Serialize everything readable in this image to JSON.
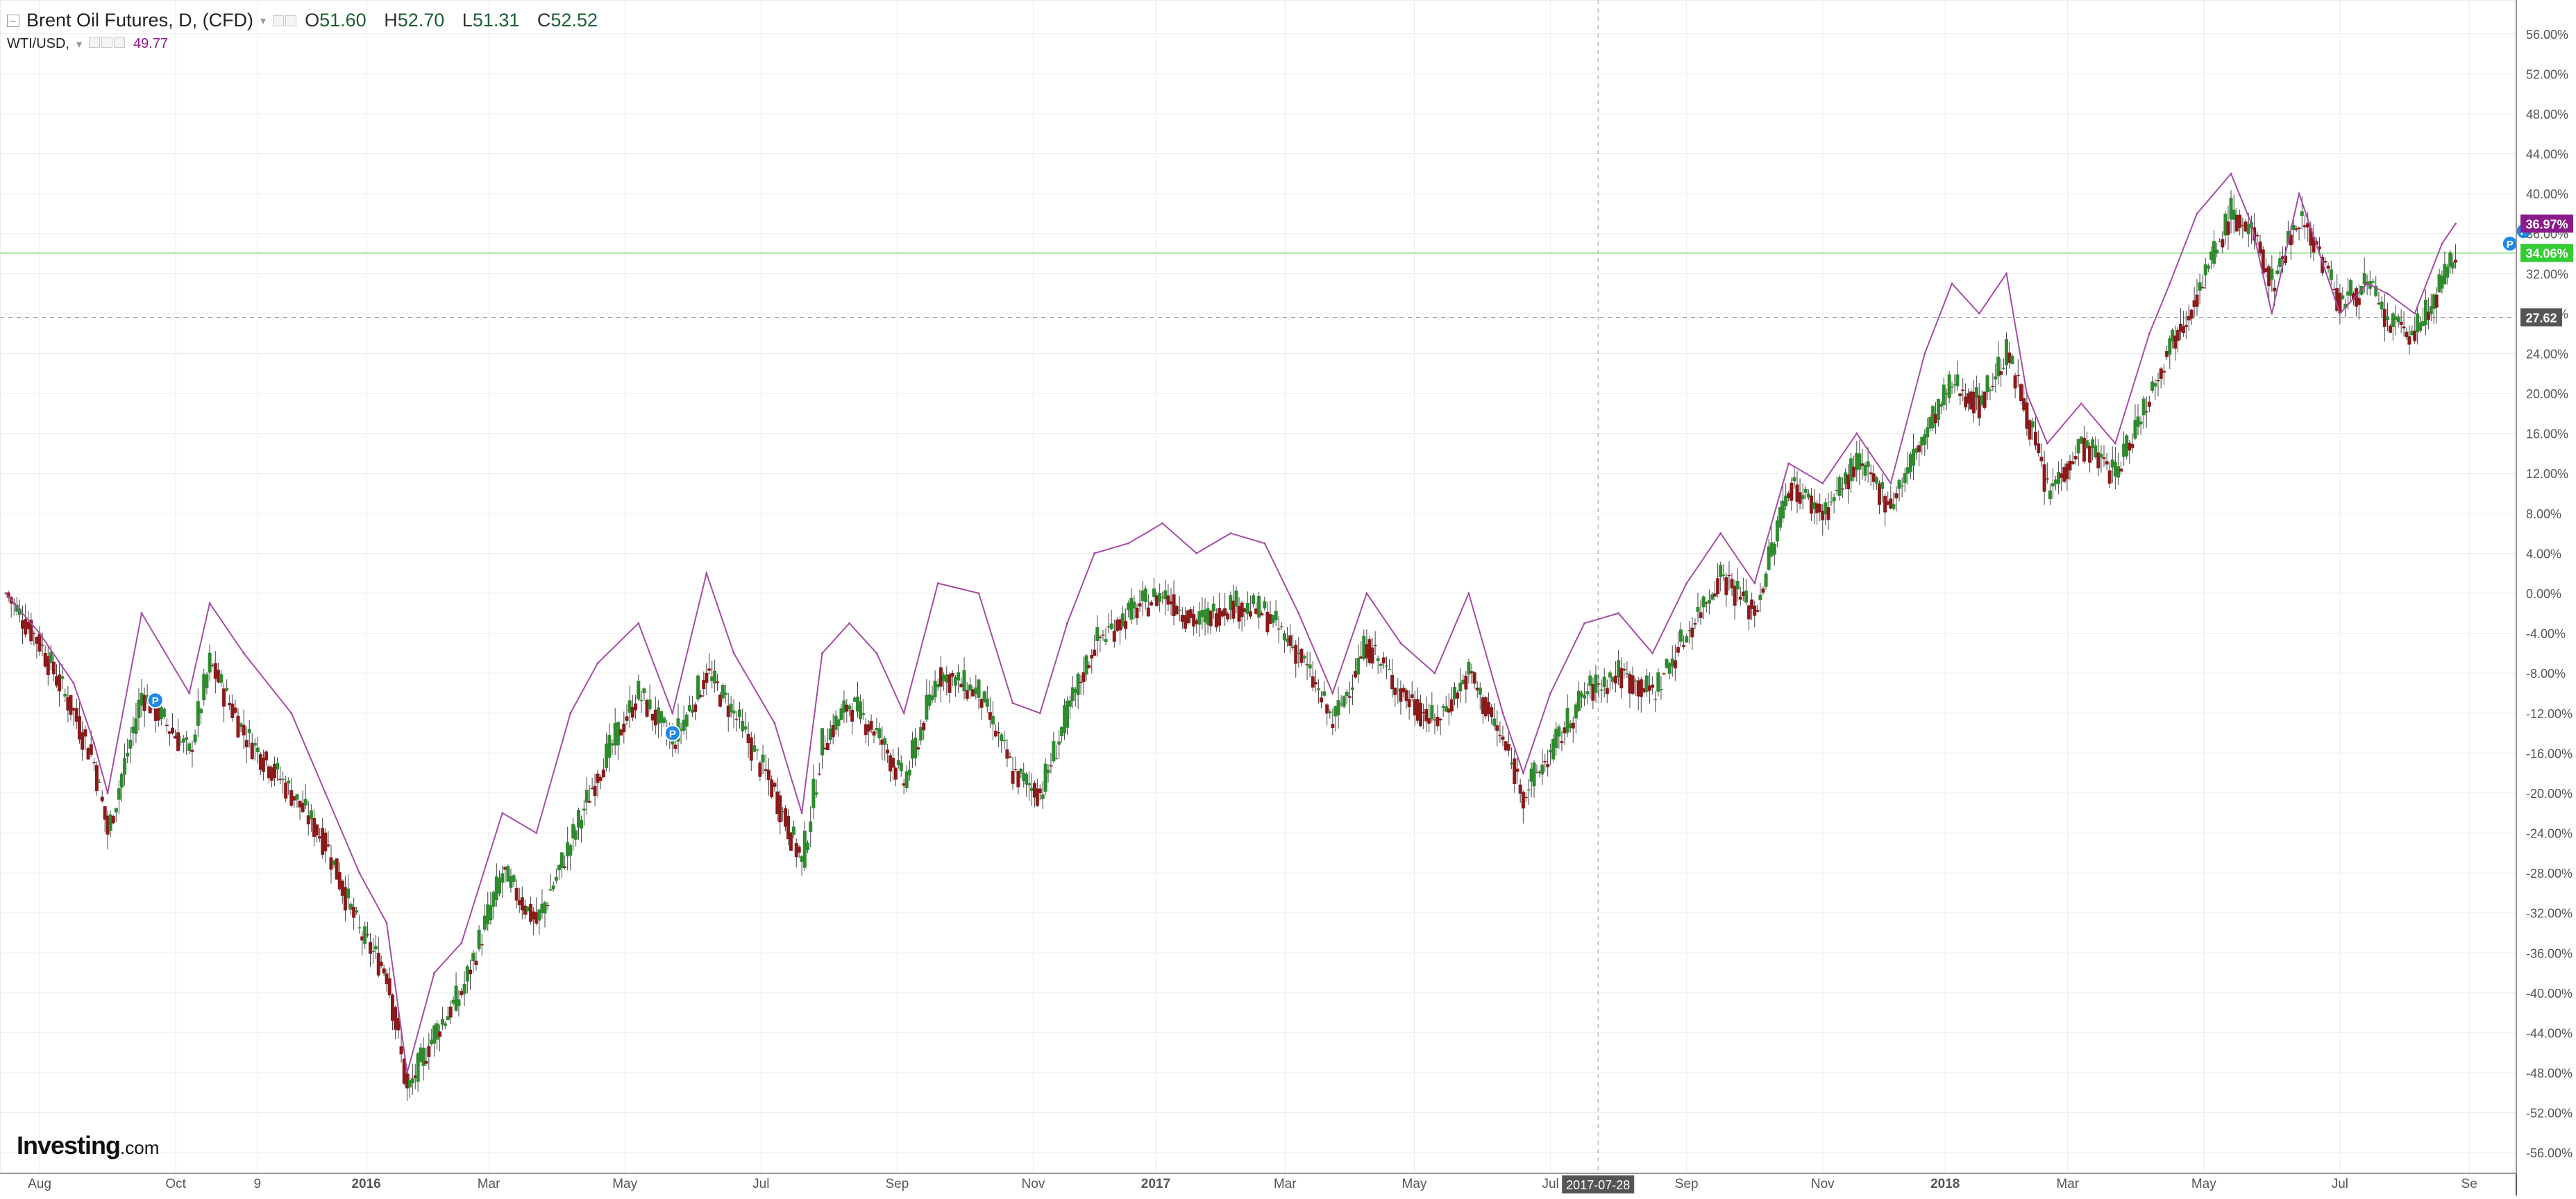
{
  "legend": {
    "main_title": "Brent Oil Futures, D, (CFD)",
    "open_key": "O",
    "open": "51.60",
    "high_key": "H",
    "high": "52.70",
    "low_key": "L",
    "low": "51.31",
    "close_key": "C",
    "close": "52.52",
    "compare_title": "WTI/USD,",
    "compare_value": "49.77"
  },
  "logo": {
    "name": "Investing",
    "suffix": ".com"
  },
  "colors": {
    "up": "#2e8b2e",
    "down": "#8b1a1a",
    "compare_line": "#a64ca6",
    "compare_badge": "#8b1a8b",
    "last_price_badge": "#33cc33",
    "crosshair_badge": "#555555",
    "grid": "#ececec"
  },
  "icons": [
    "collapse-icon",
    "settings-icon",
    "close-icon",
    "dividend-marker-icon"
  ],
  "chart_data": {
    "type": "line",
    "y_scale": "percent",
    "ylim": [
      -58,
      58
    ],
    "y_ticks": [
      "56.00%",
      "52.00%",
      "48.00%",
      "44.00%",
      "40.00%",
      "36.00%",
      "32.00%",
      "28.00%",
      "24.00%",
      "20.00%",
      "16.00%",
      "12.00%",
      "8.00%",
      "4.00%",
      "0.00%",
      "-4.00%",
      "-8.00%",
      "-12.00%",
      "-16.00%",
      "-20.00%",
      "-24.00%",
      "-28.00%",
      "-32.00%",
      "-36.00%",
      "-40.00%",
      "-44.00%",
      "-48.00%",
      "-52.00%",
      "-56.00%"
    ],
    "x_ticks": [
      "Aug",
      "Oct",
      "9",
      "2016",
      "Mar",
      "May",
      "Jul",
      "Sep",
      "Nov",
      "2017",
      "Mar",
      "May",
      "Jul",
      "Sep",
      "Nov",
      "2018",
      "Mar",
      "May",
      "Jul",
      "Se"
    ],
    "x_tick_t": [
      0.5,
      2.5,
      3.7,
      5.3,
      7.1,
      9.1,
      11.1,
      13.1,
      15.1,
      16.9,
      18.8,
      20.7,
      22.7,
      24.7,
      26.7,
      28.5,
      30.3,
      32.3,
      34.3,
      36.2
    ],
    "x_range": [
      0,
      36.8
    ],
    "series": [
      {
        "name": "Brent Oil Futures",
        "kind": "candlestick",
        "t": [
          0,
          0.5,
          1,
          1.3,
          1.5,
          2,
          2.7,
          3,
          3.5,
          4.2,
          4.7,
          5.2,
          5.6,
          5.9,
          6.3,
          6.7,
          7.3,
          7.8,
          8.3,
          8.7,
          9.3,
          9.8,
          10.3,
          10.7,
          11.3,
          11.7,
          12.0,
          12.4,
          12.8,
          13.2,
          13.7,
          14.3,
          14.8,
          15.2,
          15.6,
          16.0,
          16.5,
          17.0,
          17.5,
          18.0,
          18.5,
          19.0,
          19.5,
          20.0,
          20.5,
          21.0,
          21.5,
          22.0,
          22.3,
          22.7,
          23.2,
          23.7,
          24.2,
          24.7,
          25.2,
          25.7,
          26.2,
          26.7,
          27.2,
          27.7,
          28.2,
          28.6,
          29.0,
          29.4,
          29.7,
          30.0,
          30.5,
          31.0,
          31.5,
          31.8,
          32.2,
          32.7,
          33.0,
          33.3,
          33.7,
          34.0,
          34.3,
          34.7,
          35.0,
          35.4,
          35.8,
          36.0
        ],
        "close": [
          0,
          -5,
          -12,
          -17,
          -24,
          -10,
          -16,
          -7,
          -14,
          -20,
          -25,
          -34,
          -38,
          -50,
          -44,
          -40,
          -28,
          -33,
          -25,
          -18,
          -10,
          -15,
          -8,
          -12,
          -20,
          -27,
          -15,
          -11,
          -14,
          -19,
          -8,
          -10,
          -18,
          -20,
          -12,
          -5,
          -2,
          0,
          -3,
          -1,
          -2,
          -6,
          -13,
          -5,
          -10,
          -13,
          -8,
          -15,
          -20,
          -16,
          -10,
          -8,
          -10,
          -4,
          2,
          -2,
          11,
          8,
          13,
          9,
          16,
          21,
          19,
          24,
          18,
          10,
          15,
          12,
          20,
          25,
          30,
          38,
          36,
          31,
          38,
          34,
          29,
          31,
          27,
          26,
          31,
          34
        ],
        "markers_p": [
          2.2,
          9.8,
          36.9,
          37.0
        ]
      },
      {
        "name": "WTI/USD",
        "kind": "line",
        "t": [
          0,
          0.5,
          1,
          1.3,
          1.5,
          2,
          2.7,
          3,
          3.5,
          4.2,
          4.7,
          5.2,
          5.6,
          5.9,
          6.3,
          6.7,
          7.3,
          7.8,
          8.3,
          8.7,
          9.3,
          9.8,
          10.3,
          10.7,
          11.3,
          11.7,
          12.0,
          12.4,
          12.8,
          13.2,
          13.7,
          14.3,
          14.8,
          15.2,
          15.6,
          16.0,
          16.5,
          17.0,
          17.5,
          18.0,
          18.5,
          19.0,
          19.5,
          20.0,
          20.5,
          21.0,
          21.5,
          22.0,
          22.3,
          22.7,
          23.2,
          23.7,
          24.2,
          24.7,
          25.2,
          25.7,
          26.2,
          26.7,
          27.2,
          27.7,
          28.2,
          28.6,
          29.0,
          29.4,
          29.7,
          30.0,
          30.5,
          31.0,
          31.5,
          31.8,
          32.2,
          32.7,
          33.0,
          33.3,
          33.7,
          34.0,
          34.3,
          34.7,
          35.0,
          35.4,
          35.8,
          36.0
        ],
        "values": [
          0,
          -4,
          -9,
          -15,
          -20,
          -2,
          -10,
          -1,
          -6,
          -12,
          -20,
          -28,
          -33,
          -48,
          -38,
          -35,
          -22,
          -24,
          -12,
          -7,
          -3,
          -12,
          2,
          -6,
          -13,
          -22,
          -6,
          -3,
          -6,
          -12,
          1,
          0,
          -11,
          -12,
          -3,
          4,
          5,
          7,
          4,
          6,
          5,
          -2,
          -10,
          0,
          -5,
          -8,
          0,
          -12,
          -18,
          -10,
          -3,
          -2,
          -6,
          1,
          6,
          1,
          13,
          11,
          16,
          11,
          24,
          31,
          28,
          32,
          20,
          15,
          19,
          15,
          26,
          31,
          38,
          42,
          37,
          28,
          40,
          34,
          28,
          31,
          30,
          28,
          35,
          37
        ]
      }
    ],
    "last_badges": {
      "compare": "36.97%",
      "main": "34.06%",
      "crosshair_y": "27.62",
      "crosshair_x": "2017-07-28"
    },
    "crosshair_t": 23.4,
    "crosshair_y_value": 27.62,
    "last_price_value": 34.06
  }
}
